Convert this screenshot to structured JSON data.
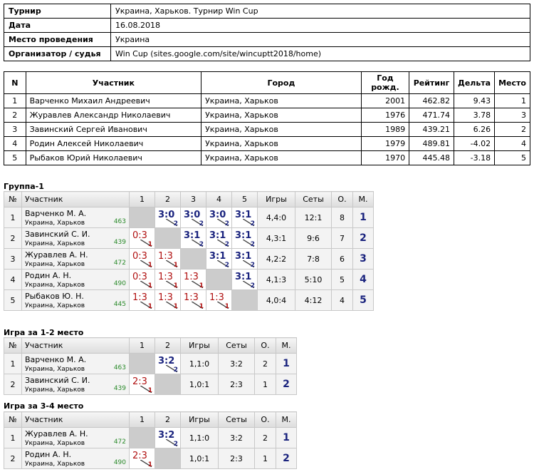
{
  "info": {
    "rows": [
      [
        "Турнир",
        "Украина, Харьков. Турнир Win Cup"
      ],
      [
        "Дата",
        "16.08.2018"
      ],
      [
        "Место проведения",
        "Украина"
      ],
      [
        "Организатор / судья",
        "Win Cup (sites.google.com/site/wincuptt2018/home)"
      ]
    ]
  },
  "participants": {
    "header": [
      "N",
      "Участник",
      "Город",
      "Год рожд.",
      "Рейтинг",
      "Дельта",
      "Место"
    ],
    "rows": [
      [
        "1",
        "Варченко Михаил Андреевич",
        "Украина, Харьков",
        "2001",
        "462.82",
        "9.43",
        "1"
      ],
      [
        "2",
        "Журавлев Александр Николаевич",
        "Украина, Харьков",
        "1976",
        "471.74",
        "3.78",
        "3"
      ],
      [
        "3",
        "Завинский Сергей Иванович",
        "Украина, Харьков",
        "1989",
        "439.21",
        "6.26",
        "2"
      ],
      [
        "4",
        "Родин Алексей Николаевич",
        "Украина, Харьков",
        "1979",
        "489.81",
        "-4.02",
        "4"
      ],
      [
        "5",
        "Рыбаков Юрий Николаевич",
        "Украина, Харьков",
        "1970",
        "445.48",
        "-3.18",
        "5"
      ]
    ]
  },
  "groups": [
    {
      "title": "Группа-1",
      "header": [
        "№",
        "Участник",
        "1",
        "2",
        "3",
        "4",
        "5",
        "Игры",
        "Сеты",
        "О.",
        "М."
      ],
      "rows": [
        {
          "num": "1",
          "name": "Варченко М. А.",
          "city": "Украина, Харьков",
          "rating": "463",
          "results": [
            null,
            {
              "score": "3:0",
              "pts": "2"
            },
            {
              "score": "3:0",
              "pts": "2"
            },
            {
              "score": "3:0",
              "pts": "2"
            },
            {
              "score": "3:1",
              "pts": "2"
            }
          ],
          "games": "4,4:0",
          "sets": "12:1",
          "points": "8",
          "place": "1"
        },
        {
          "num": "2",
          "name": "Завинский С. И.",
          "city": "Украина, Харьков",
          "rating": "439",
          "results": [
            {
              "score": "0:3",
              "pts": "1"
            },
            null,
            {
              "score": "3:1",
              "pts": "2"
            },
            {
              "score": "3:1",
              "pts": "2"
            },
            {
              "score": "3:1",
              "pts": "2"
            }
          ],
          "games": "4,3:1",
          "sets": "9:6",
          "points": "7",
          "place": "2"
        },
        {
          "num": "3",
          "name": "Журавлев А. Н.",
          "city": "Украина, Харьков",
          "rating": "472",
          "results": [
            {
              "score": "0:3",
              "pts": "1"
            },
            {
              "score": "1:3",
              "pts": "1"
            },
            null,
            {
              "score": "3:1",
              "pts": "2"
            },
            {
              "score": "3:1",
              "pts": "2"
            }
          ],
          "games": "4,2:2",
          "sets": "7:8",
          "points": "6",
          "place": "3"
        },
        {
          "num": "4",
          "name": "Родин А. Н.",
          "city": "Украина, Харьков",
          "rating": "490",
          "results": [
            {
              "score": "0:3",
              "pts": "1"
            },
            {
              "score": "1:3",
              "pts": "1"
            },
            {
              "score": "1:3",
              "pts": "1"
            },
            null,
            {
              "score": "3:1",
              "pts": "2"
            }
          ],
          "games": "4,1:3",
          "sets": "5:10",
          "points": "5",
          "place": "4"
        },
        {
          "num": "5",
          "name": "Рыбаков Ю. Н.",
          "city": "Украина, Харьков",
          "rating": "445",
          "results": [
            {
              "score": "1:3",
              "pts": "1"
            },
            {
              "score": "1:3",
              "pts": "1"
            },
            {
              "score": "1:3",
              "pts": "1"
            },
            {
              "score": "1:3",
              "pts": "1"
            },
            null
          ],
          "games": "4,0:4",
          "sets": "4:12",
          "points": "4",
          "place": "5"
        }
      ]
    },
    {
      "title": "Игра за 1-2 место",
      "header": [
        "№",
        "Участник",
        "1",
        "2",
        "Игры",
        "Сеты",
        "О.",
        "М."
      ],
      "rows": [
        {
          "num": "1",
          "name": "Варченко М. А.",
          "city": "Украина, Харьков",
          "rating": "463",
          "results": [
            null,
            {
              "score": "3:2",
              "pts": "2"
            }
          ],
          "games": "1,1:0",
          "sets": "3:2",
          "points": "2",
          "place": "1"
        },
        {
          "num": "2",
          "name": "Завинский С. И.",
          "city": "Украина, Харьков",
          "rating": "439",
          "results": [
            {
              "score": "2:3",
              "pts": "1"
            },
            null
          ],
          "games": "1,0:1",
          "sets": "2:3",
          "points": "1",
          "place": "2"
        }
      ]
    },
    {
      "title": "Игра за 3-4 место",
      "header": [
        "№",
        "Участник",
        "1",
        "2",
        "Игры",
        "Сеты",
        "О.",
        "М."
      ],
      "rows": [
        {
          "num": "1",
          "name": "Журавлев А. Н.",
          "city": "Украина, Харьков",
          "rating": "472",
          "results": [
            null,
            {
              "score": "3:2",
              "pts": "2"
            }
          ],
          "games": "1,1:0",
          "sets": "3:2",
          "points": "2",
          "place": "1"
        },
        {
          "num": "2",
          "name": "Родин А. Н.",
          "city": "Украина, Харьков",
          "rating": "490",
          "results": [
            {
              "score": "2:3",
              "pts": "1"
            },
            null
          ],
          "games": "1,0:1",
          "sets": "2:3",
          "points": "1",
          "place": "2"
        }
      ]
    }
  ]
}
